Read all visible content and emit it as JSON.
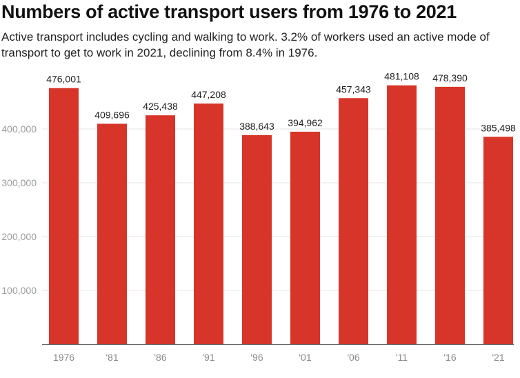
{
  "chart_data": {
    "type": "bar",
    "title": "Numbers of active transport users from 1976 to 2021",
    "subtitle": "Active transport includes cycling and walking to work. 3.2% of workers used an active mode of transport to get to work in 2021, declining from 8.4% in 1976.",
    "xlabel": "",
    "ylabel": "",
    "categories": [
      "1976",
      "'81",
      "'86",
      "'91",
      "'96",
      "'01",
      "'06",
      "'11",
      "'16",
      "'21"
    ],
    "values": [
      476001,
      409696,
      425438,
      447208,
      388643,
      394962,
      457343,
      481108,
      478390,
      385498
    ],
    "data_labels": [
      "476,001",
      "409,696",
      "425,438",
      "447,208",
      "388,643",
      "394,962",
      "457,343",
      "481,108",
      "478,390",
      "385,498"
    ],
    "ylim": [
      0,
      500000
    ],
    "yticks": [
      100000,
      200000,
      300000,
      400000
    ],
    "ytick_labels": [
      "100,000",
      "200,000",
      "300,000",
      "400,000"
    ],
    "grid": true,
    "bar_color": "#d7352a"
  }
}
